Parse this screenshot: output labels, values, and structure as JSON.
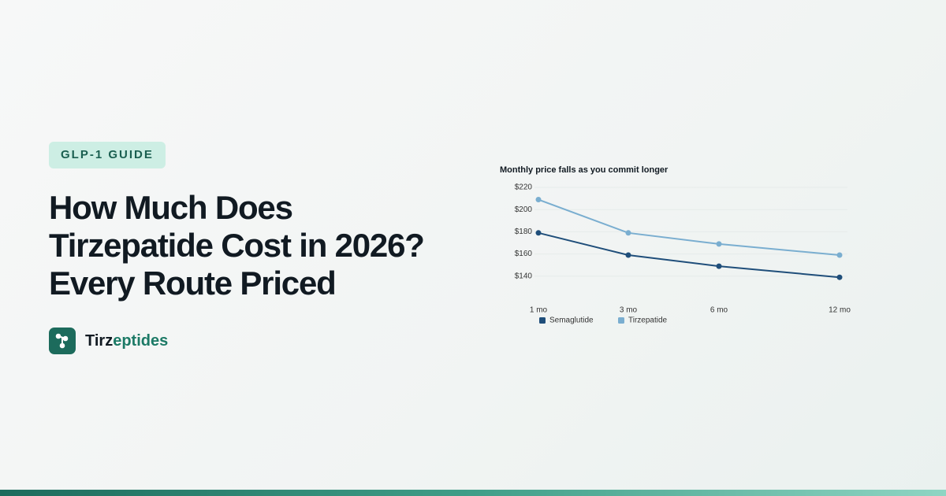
{
  "badge": "GLP-1 GUIDE",
  "title_lines": [
    "How Much Does",
    "Tirzepatide Cost in 2026?",
    "Every Route Priced"
  ],
  "brand": {
    "first": "Tirz",
    "second": "eptides"
  },
  "chart_data": {
    "type": "line",
    "title": "Monthly price falls as you commit longer",
    "categories": [
      "1 mo",
      "3 mo",
      "6 mo",
      "12 mo"
    ],
    "series": [
      {
        "name": "Semaglutide",
        "color": "#1f4e7a",
        "values": [
          179,
          159,
          149,
          139
        ]
      },
      {
        "name": "Tirzepatide",
        "color": "#7aaed0",
        "values": [
          209,
          179,
          169,
          159
        ]
      }
    ],
    "ylim": [
      120,
      220
    ],
    "yticks": [
      {
        "value": 140,
        "label": "$140"
      },
      {
        "value": 160,
        "label": "$160"
      },
      {
        "value": 180,
        "label": "$180"
      },
      {
        "value": 200,
        "label": "$200"
      },
      {
        "value": 220,
        "label": "$220"
      }
    ],
    "grid": true,
    "legend": "bottom-left"
  }
}
